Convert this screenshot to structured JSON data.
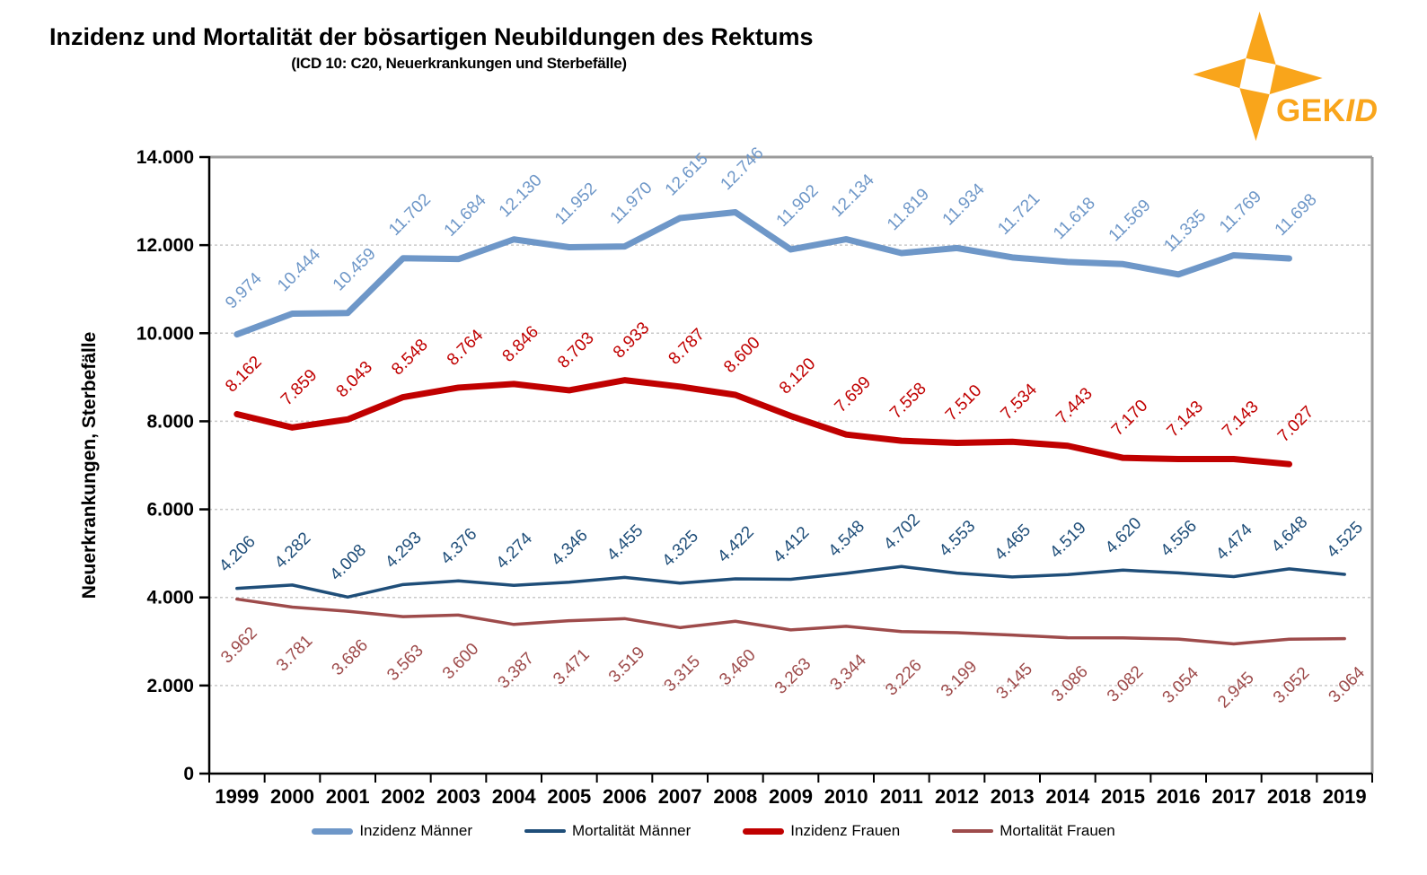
{
  "header": {
    "title": "Inzidenz und Mortalität der bösartigen Neubildungen des Rektums",
    "subtitle": "(ICD 10: C20, Neuerkrankungen und Sterbefälle)"
  },
  "logo": {
    "text_bold": "GEK",
    "text_italic": "ID",
    "color": "#F9A51B"
  },
  "chart_data": {
    "type": "line",
    "title": "Inzidenz und Mortalität der bösartigen Neubildungen des Rektums",
    "subtitle": "(ICD 10: C20, Neuerkrankungen und Sterbefälle)",
    "ylabel": "Neuerkrankungen,  Sterbefälle",
    "xlabel": "",
    "ylim": [
      0,
      14000
    ],
    "y_tick_step": 2000,
    "y_tick_labels": [
      "0",
      "2.000",
      "4.000",
      "6.000",
      "8.000",
      "10.000",
      "12.000",
      "14.000"
    ],
    "x": [
      1999,
      2000,
      2001,
      2002,
      2003,
      2004,
      2005,
      2006,
      2007,
      2008,
      2009,
      2010,
      2011,
      2012,
      2013,
      2014,
      2015,
      2016,
      2017,
      2018,
      2019
    ],
    "grid": "horizontal-dashed",
    "legend_position": "bottom",
    "number_format": "de thousands dot",
    "series": [
      {
        "name": "Inzidenz Männer",
        "color": "#6E97C8",
        "width": 7,
        "start_year": 1999,
        "values": [
          9974,
          10444,
          10459,
          11702,
          11684,
          12130,
          11952,
          11970,
          12615,
          12746,
          11902,
          12134,
          11819,
          11934,
          11721,
          11618,
          11569,
          11335,
          11769,
          11698
        ]
      },
      {
        "name": "Mortalität Männer",
        "color": "#1F4E79",
        "width": 3.5,
        "start_year": 1999,
        "values": [
          4206,
          4282,
          4008,
          4293,
          4376,
          4274,
          4346,
          4455,
          4325,
          4422,
          4412,
          4548,
          4702,
          4553,
          4465,
          4519,
          4620,
          4556,
          4474,
          4648,
          4525
        ]
      },
      {
        "name": "Inzidenz Frauen",
        "color": "#C00000",
        "width": 7,
        "start_year": 1999,
        "values": [
          8162,
          7859,
          8043,
          8548,
          8764,
          8846,
          8703,
          8933,
          8787,
          8600,
          8120,
          7699,
          7558,
          7510,
          7534,
          7443,
          7170,
          7143,
          7143,
          7027
        ]
      },
      {
        "name": "Mortalität Frauen",
        "color": "#9E4B4B",
        "width": 3.5,
        "start_year": 1999,
        "values": [
          3962,
          3781,
          3686,
          3563,
          3600,
          3387,
          3471,
          3519,
          3315,
          3460,
          3263,
          3344,
          3226,
          3199,
          3145,
          3086,
          3082,
          3054,
          2945,
          3052,
          3064
        ]
      }
    ]
  }
}
